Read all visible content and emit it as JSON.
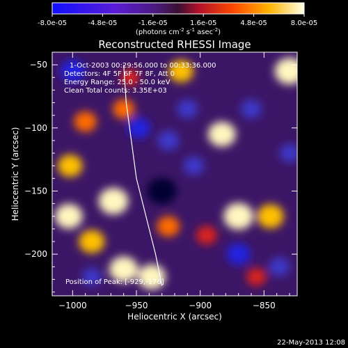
{
  "colorbar": {
    "ticks": [
      "-8.0e-05",
      "-4.8e-05",
      "-1.6e-05",
      "1.6e-05",
      "4.8e-05",
      "8.0e-05"
    ],
    "unit_label": "(photons cm",
    "unit_sup1": "-2",
    "unit_mid1": " s",
    "unit_sup2": "-1",
    "unit_mid2": " asec",
    "unit_sup3": "-2",
    "unit_close": ")"
  },
  "chart_data": {
    "type": "heatmap",
    "title": "Reconstructed RHESSI Image",
    "xlabel": "Heliocentric X (arcsec)",
    "ylabel": "Heliocentric Y (arcsec)",
    "xlim": [
      -1016,
      -824
    ],
    "ylim": [
      -233,
      -40
    ],
    "x_ticks": [
      -1000,
      -950,
      -900,
      -850
    ],
    "y_ticks": [
      -50,
      -100,
      -150,
      -200
    ],
    "x_tick_labels": [
      "−1000",
      "−950",
      "−900",
      "−850"
    ],
    "y_tick_labels": [
      "−50",
      "−100",
      "−150",
      "−200"
    ],
    "colormap": "blue-purple-red-yellow-white",
    "color_range": [
      -8e-05,
      8e-05
    ],
    "annotations": [
      "1-Oct-2003 00:29:56.000 to 00:33:36.000",
      "Detectors: 4F 5F 6F 7F 8F, Att 0",
      "Energy Range: 25.0 - 50.0 keV",
      "Clean    Total counts: 3.35E+03",
      "Position of Peak: [-929,-176]"
    ],
    "peak_position": [
      -929,
      -176
    ],
    "limb_curve_x": [
      -960,
      -958,
      -954,
      -950,
      -945,
      -940,
      -935,
      -930
    ],
    "limb_curve_y": [
      -50,
      -80,
      -110,
      -140,
      -160,
      -180,
      -200,
      -225
    ],
    "blobs": [
      {
        "x": -968,
        "y": -158,
        "level": 0.95
      },
      {
        "x": -1003,
        "y": -170,
        "level": 0.85
      },
      {
        "x": -985,
        "y": -190,
        "level": 0.75
      },
      {
        "x": -960,
        "y": -212,
        "level": 0.9
      },
      {
        "x": -938,
        "y": -218,
        "level": 0.85
      },
      {
        "x": -925,
        "y": -178,
        "level": 0.6
      },
      {
        "x": -990,
        "y": -95,
        "level": 0.6
      },
      {
        "x": -960,
        "y": -85,
        "level": 0.55
      },
      {
        "x": -870,
        "y": -170,
        "level": 0.95
      },
      {
        "x": -845,
        "y": -170,
        "level": 0.8
      },
      {
        "x": -830,
        "y": -55,
        "level": 0.95
      },
      {
        "x": -883,
        "y": -105,
        "level": 0.85
      },
      {
        "x": -915,
        "y": -55,
        "level": 0.7
      },
      {
        "x": -1002,
        "y": -130,
        "level": 0.7
      },
      {
        "x": -955,
        "y": -60,
        "level": 0.4
      },
      {
        "x": -895,
        "y": -185,
        "level": 0.5
      },
      {
        "x": -856,
        "y": -218,
        "level": 0.45
      },
      {
        "x": -930,
        "y": -150,
        "level": -0.95
      },
      {
        "x": -1000,
        "y": -55,
        "level": -0.7
      },
      {
        "x": -948,
        "y": -100,
        "level": -0.6
      },
      {
        "x": -925,
        "y": -110,
        "level": -0.55
      },
      {
        "x": -905,
        "y": -130,
        "level": -0.5
      },
      {
        "x": -870,
        "y": -200,
        "level": -0.65
      },
      {
        "x": -985,
        "y": -218,
        "level": -0.45
      },
      {
        "x": -860,
        "y": -85,
        "level": -0.5
      },
      {
        "x": -830,
        "y": -120,
        "level": -0.45
      },
      {
        "x": -838,
        "y": -210,
        "level": -0.5
      },
      {
        "x": -910,
        "y": -85,
        "level": -0.5
      }
    ]
  },
  "footer": {
    "date": "22-May-2013 12:08"
  }
}
